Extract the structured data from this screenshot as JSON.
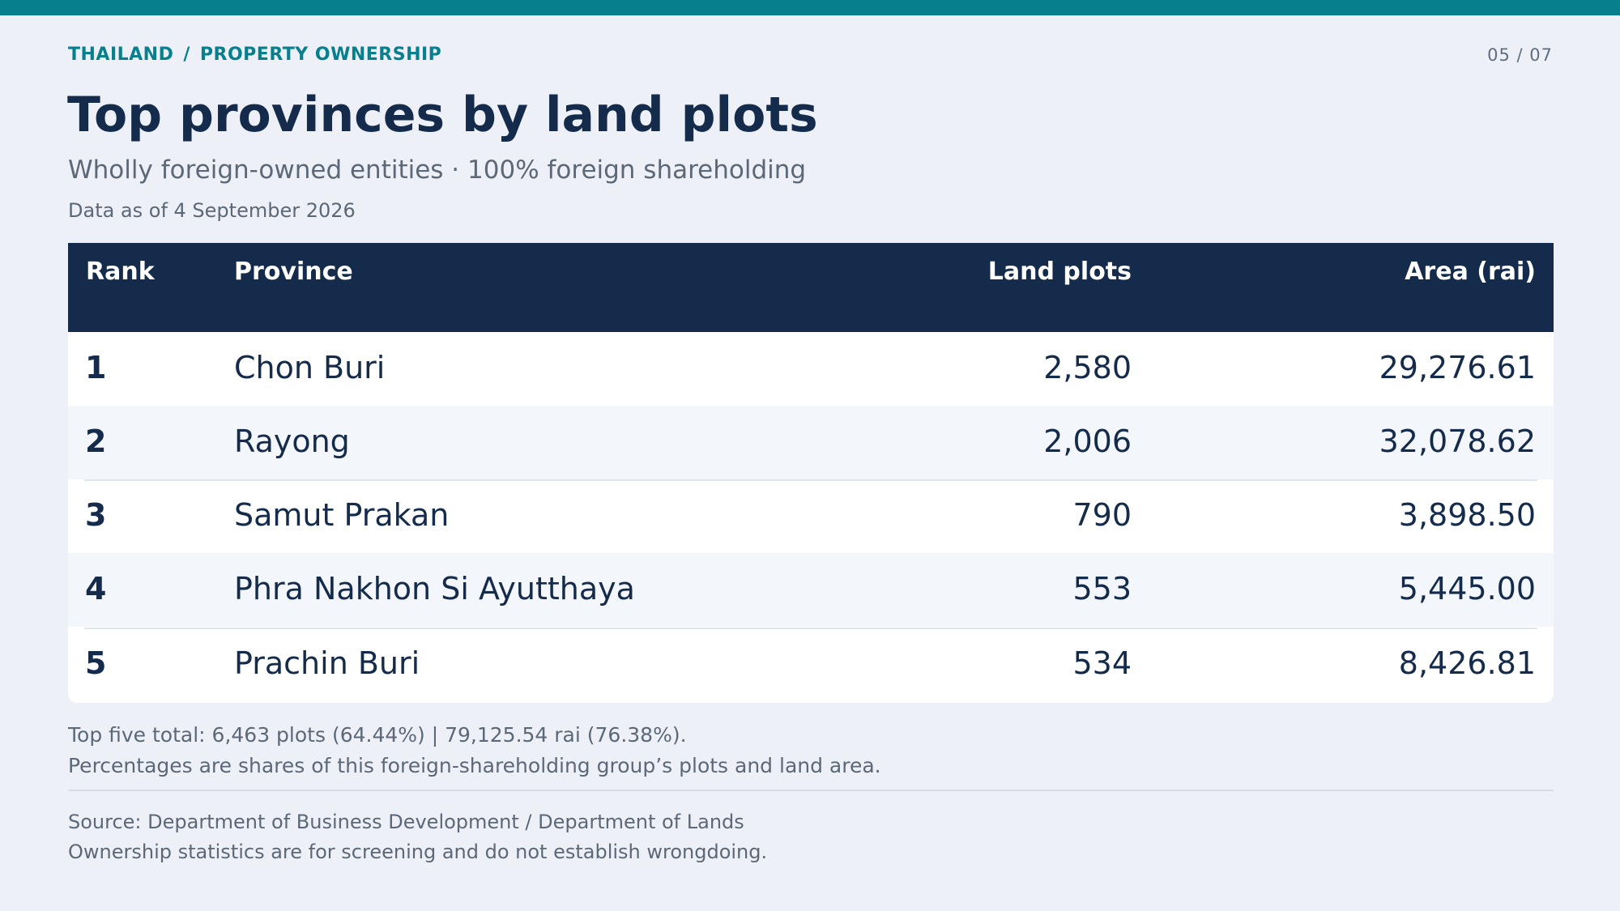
{
  "header": {
    "breadcrumb": [
      "THAILAND",
      "PROPERTY OWNERSHIP"
    ],
    "breadcrumb_separator": "/",
    "page_counter": "05 / 07"
  },
  "title": "Top provinces by land plots",
  "subtitle": "Wholly foreign-owned entities · 100% foreign shareholding",
  "as_of": "Data as of 4 September 2026",
  "table": {
    "columns": [
      "Rank",
      "Province",
      "Land plots",
      "Area (rai)"
    ],
    "rows": [
      {
        "rank": "1",
        "province": "Chon Buri",
        "plots": "2,580",
        "area": "29,276.61"
      },
      {
        "rank": "2",
        "province": "Rayong",
        "plots": "2,006",
        "area": "32,078.62"
      },
      {
        "rank": "3",
        "province": "Samut Prakan",
        "plots": "790",
        "area": "3,898.50"
      },
      {
        "rank": "4",
        "province": "Phra Nakhon Si Ayutthaya",
        "plots": "553",
        "area": "5,445.00"
      },
      {
        "rank": "5",
        "province": "Prachin Buri",
        "plots": "534",
        "area": "8,426.81"
      }
    ]
  },
  "notes": [
    "Top five total: 6,463 plots (64.44%) | 79,125.54 rai (76.38%).",
    "Percentages are shares of this foreign-shareholding group’s plots and land area."
  ],
  "source": [
    "Source: Department of Business Development / Department of Lands",
    "Ownership statistics are for screening and do not establish wrongdoing."
  ],
  "colors": {
    "accent": "#087f8c",
    "header_bg": "#142b4b",
    "page_bg": "#edf1f7"
  }
}
